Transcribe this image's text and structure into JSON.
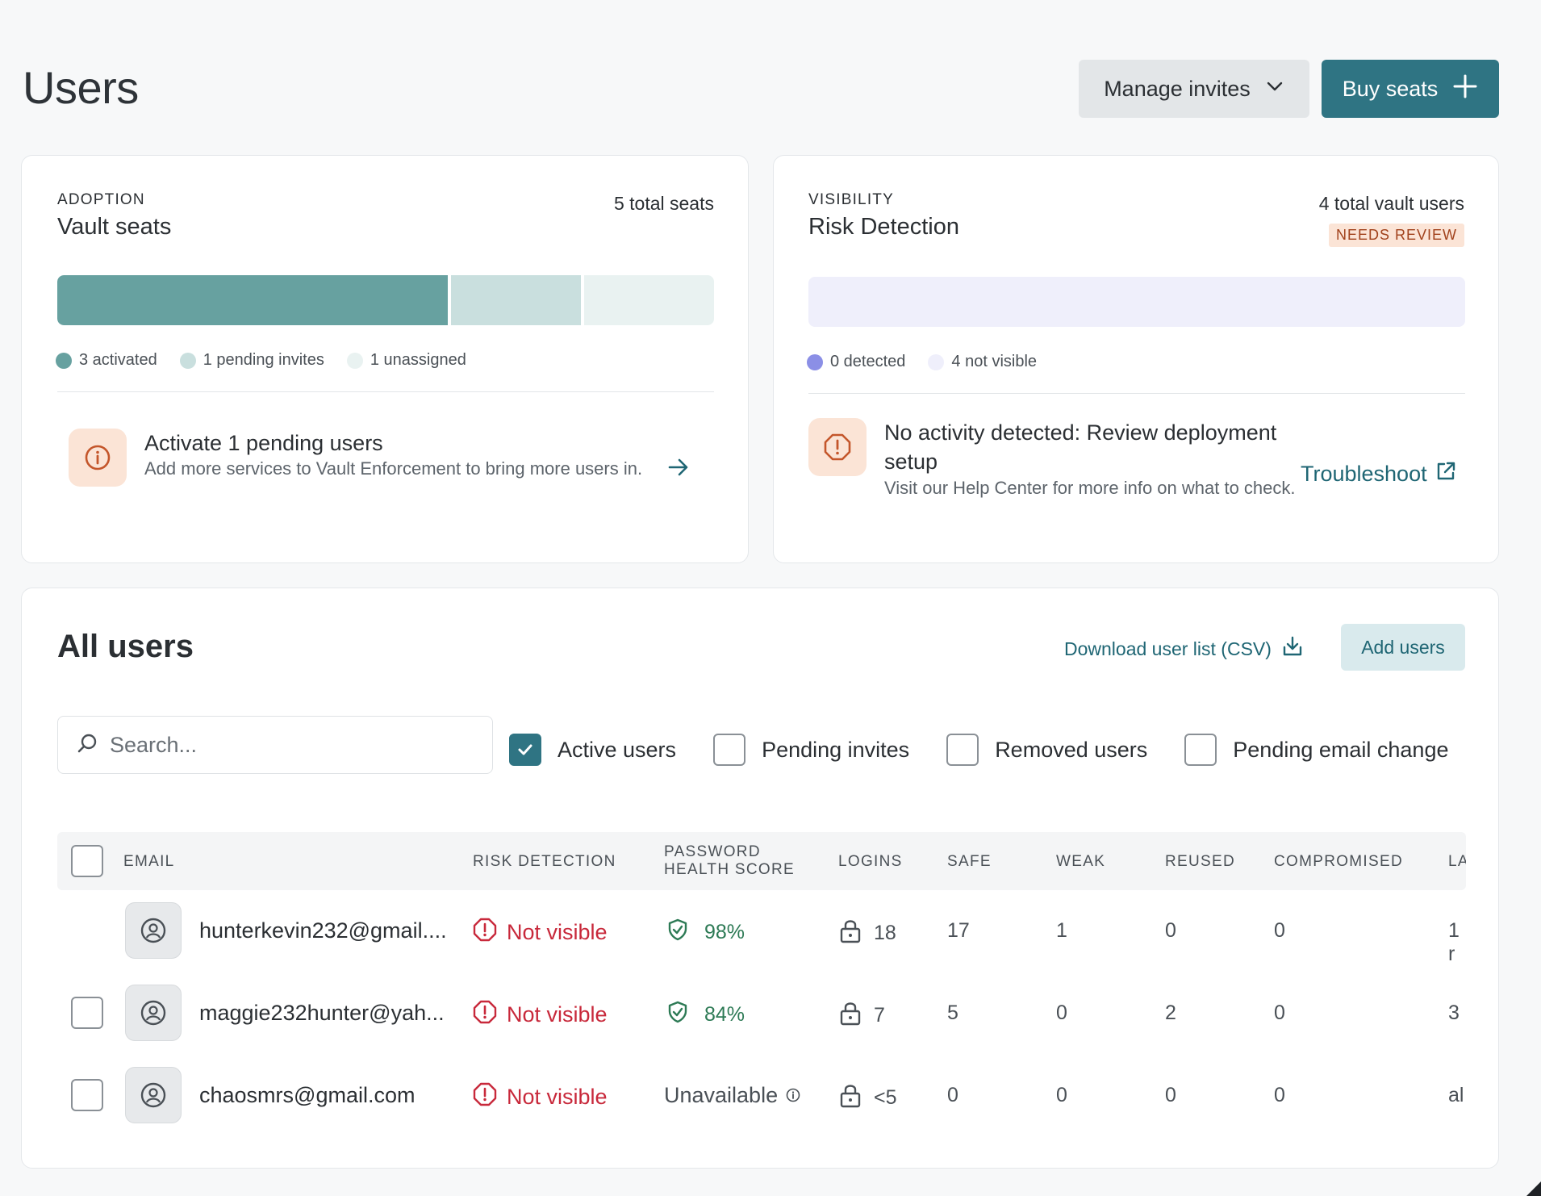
{
  "page": {
    "title": "Users"
  },
  "header": {
    "manage_invites_label": "Manage invites",
    "buy_seats_label": "Buy seats"
  },
  "adoption": {
    "eyebrow": "ADOPTION",
    "title": "Vault seats",
    "total": "5 total seats",
    "bar": {
      "activated": 3,
      "pending": 1,
      "unassigned": 1
    },
    "legend": {
      "activated": "3 activated",
      "pending": "1 pending invites",
      "unassigned": "1 unassigned"
    },
    "callout": {
      "title": "Activate 1 pending users",
      "desc": "Add more services to Vault Enforcement to bring more users in."
    },
    "colors": {
      "activated": "#67a1a0",
      "pending": "#c9dfde",
      "unassigned": "#e9f2f1"
    }
  },
  "visibility": {
    "eyebrow": "VISIBILITY",
    "title": "Risk Detection",
    "total": "4 total vault users",
    "badge": "NEEDS REVIEW",
    "bar": {
      "detected": 0,
      "not_visible": 4
    },
    "legend": {
      "detected": "0 detected",
      "not_visible": "4 not visible"
    },
    "callout": {
      "title": "No activity detected: Review deployment setup",
      "desc": "Visit our Help Center for more info on what to check."
    },
    "troubleshoot_label": "Troubleshoot",
    "colors": {
      "detected": "#8b8fe6",
      "not_visible": "#efeffb"
    }
  },
  "users": {
    "title": "All users",
    "download_label": "Download user list (CSV)",
    "add_users_label": "Add users",
    "search": {
      "placeholder": "Search...",
      "value": ""
    },
    "filters": [
      {
        "label": "Active users",
        "checked": true
      },
      {
        "label": "Pending invites",
        "checked": false
      },
      {
        "label": "Removed users",
        "checked": false
      },
      {
        "label": "Pending email change",
        "checked": false
      }
    ],
    "columns": {
      "email": "EMAIL",
      "risk": "RISK DETECTION",
      "score_line1": "PASSWORD",
      "score_line2": "HEALTH SCORE",
      "logins": "LOGINS",
      "safe": "SAFE",
      "weak": "WEAK",
      "reused": "REUSED",
      "compromised": "COMPROMISED",
      "last": "LA"
    },
    "rows": [
      {
        "email": "hunterkevin232@gmail....",
        "risk": "Not visible",
        "score": "98%",
        "logins": "18",
        "safe": "17",
        "weak": "1",
        "reused": "0",
        "compromised": "0",
        "last": "1 r"
      },
      {
        "email": "maggie232hunter@yah...",
        "risk": "Not visible",
        "score": "84%",
        "logins": "7",
        "safe": "5",
        "weak": "0",
        "reused": "2",
        "compromised": "0",
        "last": "3"
      },
      {
        "email": "chaosmrs@gmail.com",
        "risk": "Not visible",
        "score": "Unavailable",
        "logins": "<5",
        "safe": "0",
        "weak": "0",
        "reused": "0",
        "compromised": "0",
        "last": "al"
      }
    ]
  }
}
